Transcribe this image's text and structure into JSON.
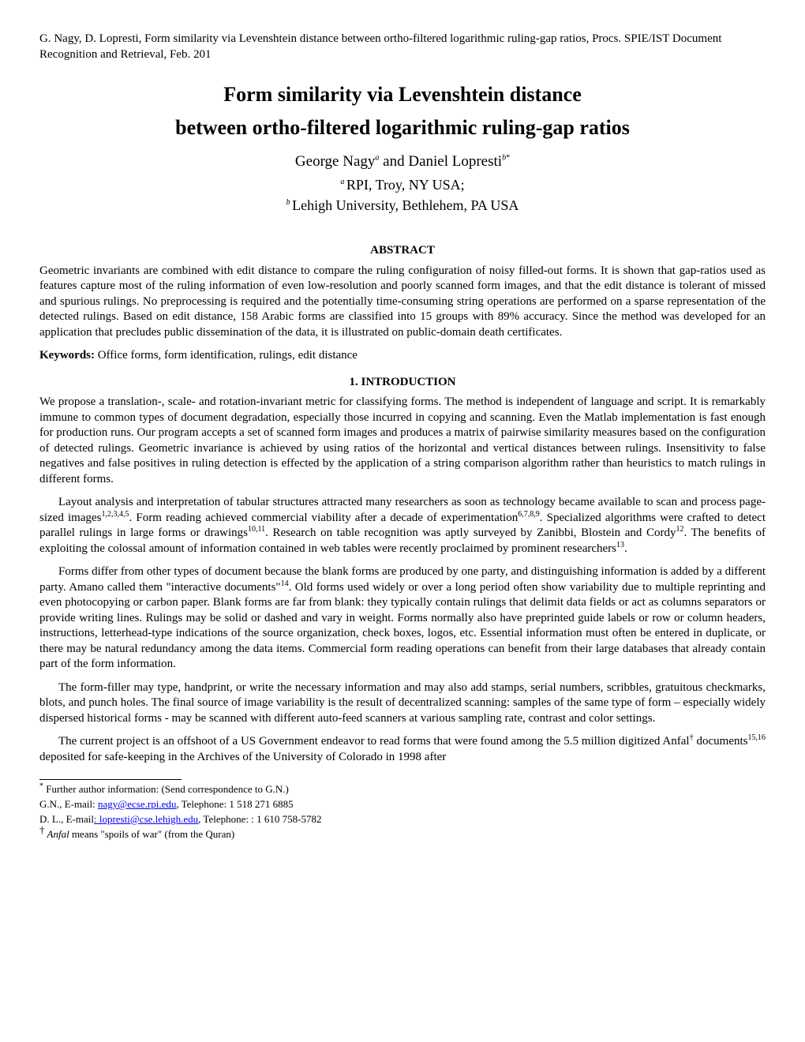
{
  "header_citation": "G. Nagy, D. Lopresti, Form similarity via Levenshtein distance between ortho-filtered logarithmic ruling-gap ratios, Procs. SPIE/IST Document Recognition and Retrieval, Feb. 201",
  "title_line1": "Form similarity via Levenshtein distance",
  "title_line2": "between ortho-filtered logarithmic ruling-gap ratios",
  "author1": "George Nagy",
  "author1_sup": "a",
  "author_and": " and ",
  "author2": "Daniel Lopresti",
  "author2_sup": "b",
  "author2_sup2": "*",
  "affil1_sup": "a ",
  "affil1": "RPI, Troy, NY USA;",
  "affil2_sup": "b ",
  "affil2": "Lehigh University, Bethlehem, PA USA",
  "abstract_heading": "ABSTRACT",
  "abstract_text": "Geometric invariants are combined with edit distance to compare the ruling configuration of noisy filled-out forms. It is shown that gap-ratios used as features capture most of the ruling information of even low-resolution and poorly scanned form images, and that the edit distance is tolerant of missed and spurious rulings. No preprocessing is required and the potentially time-consuming string operations are performed on a sparse representation of the detected rulings. Based on edit distance, 158 Arabic forms are classified into 15 groups with 89% accuracy. Since the method was developed for an application that precludes public dissemination of the data, it is illustrated on public-domain death certificates.",
  "keywords_label": "Keywords:  ",
  "keywords_text": "Office forms, form identification, rulings, edit distance",
  "section1_heading": "1. INTRODUCTION",
  "intro_p1": "We propose a translation-, scale- and rotation-invariant metric for classifying forms. The method is independent of language and script. It is remarkably immune to common types of document degradation, especially those incurred in copying and scanning. Even the Matlab implementation is fast enough for production runs. Our program accepts a set of scanned form images and produces a matrix of pairwise similarity measures based on the configuration of detected rulings. Geometric invariance is achieved by using ratios of the horizontal and vertical distances between rulings. Insensitivity to false negatives and false positives in ruling detection is effected by the application of a string comparison algorithm rather than heuristics to match rulings in different forms.",
  "intro_p2_a": "Layout analysis and interpretation of tabular structures attracted many researchers as soon as technology became available to scan and process page-sized images",
  "intro_p2_s1": "1,2,3,4,5",
  "intro_p2_b": ". Form reading achieved commercial viability after a decade of experimentation",
  "intro_p2_s2": "6,7,8,9",
  "intro_p2_c": ". Specialized algorithms were crafted to detect parallel rulings in large forms or drawings",
  "intro_p2_s3": "10,11",
  "intro_p2_d": ". Research on table recognition was aptly surveyed by Zanibbi, Blostein and Cordy",
  "intro_p2_s4": "12",
  "intro_p2_e": ". The benefits of exploiting the colossal amount of information contained in web tables were recently proclaimed by prominent researchers",
  "intro_p2_s5": "13",
  "intro_p2_f": ".",
  "intro_p3_a": "Forms differ from other types of document because the blank forms are produced by one party, and distinguishing information is added by a different party. Amano called them \"interactive documents\"",
  "intro_p3_s1": "14",
  "intro_p3_b": ". Old forms used widely or over a long period often show variability due to multiple reprinting and even photocopying or carbon paper. Blank forms are far from blank: they typically contain rulings that delimit data fields or act as columns separators or provide writing lines. Rulings may be solid or dashed and vary in weight. Forms normally also have preprinted guide labels or row or column headers, instructions, letterhead-type indications of the source organization, check boxes, logos, etc. Essential information must often be entered in duplicate, or there may be natural redundancy among the data items. Commercial form reading operations can benefit from their large databases that already contain part of the form information.",
  "intro_p4": "The form-filler may type, handprint, or write the necessary information and may also add stamps, serial numbers, scribbles, gratuitous checkmarks, blots, and punch holes. The final source of image variability is the result of decentralized scanning: samples of the same type of form – especially widely dispersed historical forms - may be scanned with different auto-feed scanners at various sampling rate, contrast and color settings.",
  "intro_p5_a": "The current project is an offshoot of a US Government endeavor to read forms that were found among the 5.5 million digitized Anfal",
  "intro_p5_s1": "†",
  "intro_p5_b": " documents",
  "intro_p5_s2": "15,16",
  "intro_p5_c": " deposited for safe-keeping in the Archives of the University of Colorado in 1998 after",
  "footnote_star": "*",
  "footnote_star_text": " Further author information: (Send correspondence to G.N.)",
  "footnote_gn_a": "G.N., E-mail: ",
  "footnote_gn_email": "nagy@ecse.rpi.edu",
  "footnote_gn_b": ", Telephone: 1 518 271 6885",
  "footnote_dl_a": "D. L., E-mail",
  "footnote_dl_email": ": lopresti@cse.lehigh.edu",
  "footnote_dl_b": ", Telephone: : 1 610 758-5782",
  "footnote_dagger": "†",
  "footnote_dagger_word": " Anfal",
  "footnote_dagger_text": " means \"spoils of war\" (from the Quran)"
}
